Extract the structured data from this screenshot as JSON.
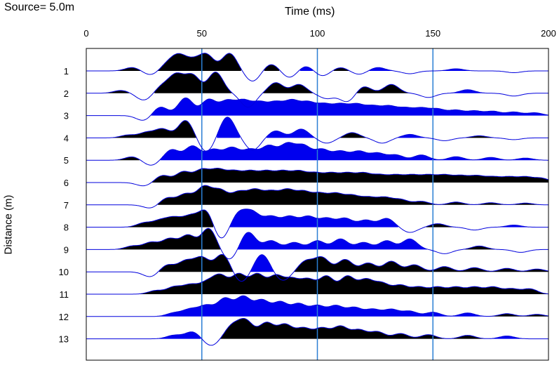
{
  "header": {
    "source_label": "Source=  5.0m"
  },
  "chart_data": {
    "type": "line",
    "title": "",
    "xlabel": "Time (ms)",
    "ylabel": "Distance (m)",
    "xlim": [
      0,
      200
    ],
    "x_ticks": [
      0,
      50,
      100,
      150,
      200
    ],
    "trace_labels": [
      "1",
      "2",
      "3",
      "4",
      "5",
      "6",
      "7",
      "8",
      "9",
      "10",
      "11",
      "12",
      "13"
    ],
    "gridlines_x": [
      50,
      100,
      150
    ],
    "grid": true,
    "colors": {
      "positive_fill": "#000000",
      "negative_fill": "#0000ee",
      "gridline": "#2b7fd4",
      "trace_line": "#0000dd"
    },
    "wavelets": [
      [
        [
          20,
          -1
        ],
        [
          28,
          1.2
        ],
        [
          35,
          -1.8
        ],
        [
          40,
          -4
        ],
        [
          46,
          -2.5
        ],
        [
          52,
          -4.5
        ],
        [
          62,
          -5
        ],
        [
          72,
          3
        ],
        [
          80,
          -2
        ],
        [
          88,
          2
        ],
        [
          95,
          -1.5
        ],
        [
          102,
          1.5
        ],
        [
          110,
          -1
        ],
        [
          118,
          1
        ],
        [
          126,
          -1
        ],
        [
          140,
          0.8
        ],
        [
          160,
          -0.6
        ],
        [
          185,
          0.5
        ]
      ],
      [
        [
          15,
          -0.8
        ],
        [
          25,
          2
        ],
        [
          33,
          -2
        ],
        [
          39,
          -5
        ],
        [
          46,
          -5
        ],
        [
          56,
          -6
        ],
        [
          70,
          4
        ],
        [
          82,
          -3
        ],
        [
          92,
          -2.5
        ],
        [
          104,
          1.5
        ],
        [
          113,
          2.5
        ],
        [
          120,
          -2
        ],
        [
          132,
          -2.5
        ],
        [
          148,
          1.2
        ],
        [
          165,
          -1
        ],
        [
          185,
          0.8
        ]
      ],
      [
        [
          25,
          1.5
        ],
        [
          32,
          -2.5
        ],
        [
          43,
          -5
        ],
        [
          53,
          -4.5
        ],
        [
          61,
          -4
        ],
        [
          68,
          -4
        ],
        [
          75,
          -3.5
        ],
        [
          82,
          -3.5
        ],
        [
          89,
          -4
        ],
        [
          96,
          -3.5
        ],
        [
          103,
          -3
        ],
        [
          110,
          -3
        ],
        [
          117,
          -3
        ],
        [
          124,
          -2.5
        ],
        [
          131,
          -2.5
        ],
        [
          138,
          -2
        ],
        [
          145,
          -2
        ],
        [
          152,
          -1.8
        ],
        [
          160,
          -1.5
        ],
        [
          168,
          -1.3
        ],
        [
          176,
          -1.2
        ],
        [
          185,
          -1
        ],
        [
          194,
          -0.8
        ]
      ],
      [
        [
          18,
          -0.8
        ],
        [
          26,
          -1.5
        ],
        [
          33,
          -2.5
        ],
        [
          43,
          -5
        ],
        [
          52,
          4
        ],
        [
          61,
          -6
        ],
        [
          72,
          3.5
        ],
        [
          82,
          -2
        ],
        [
          93,
          -2.5
        ],
        [
          104,
          1.5
        ],
        [
          115,
          -1.5
        ],
        [
          128,
          1.5
        ],
        [
          140,
          -1
        ],
        [
          155,
          0.8
        ],
        [
          170,
          -0.6
        ],
        [
          185,
          0.5
        ]
      ],
      [
        [
          20,
          -1
        ],
        [
          28,
          1.5
        ],
        [
          37,
          -3
        ],
        [
          46,
          -4
        ],
        [
          55,
          -3
        ],
        [
          63,
          -3.5
        ],
        [
          71,
          -3
        ],
        [
          79,
          -4
        ],
        [
          87,
          -4.5
        ],
        [
          94,
          -4
        ],
        [
          102,
          -3
        ],
        [
          110,
          -2.5
        ],
        [
          118,
          -2.5
        ],
        [
          126,
          -2
        ],
        [
          134,
          -1.5
        ],
        [
          145,
          -1.5
        ],
        [
          160,
          -1
        ],
        [
          175,
          -0.8
        ],
        [
          190,
          -0.6
        ]
      ],
      [
        [
          25,
          1
        ],
        [
          33,
          -2
        ],
        [
          42,
          -3
        ],
        [
          50,
          -3.5
        ],
        [
          57,
          -3.5
        ],
        [
          64,
          -3
        ],
        [
          71,
          -3
        ],
        [
          78,
          -3
        ],
        [
          85,
          -3
        ],
        [
          92,
          -3
        ],
        [
          99,
          -2.5
        ],
        [
          106,
          -2.5
        ],
        [
          113,
          -2.5
        ],
        [
          120,
          -2.5
        ],
        [
          127,
          -2
        ],
        [
          134,
          -2
        ],
        [
          141,
          -2
        ],
        [
          148,
          -2
        ],
        [
          155,
          -2
        ],
        [
          162,
          -1.8
        ],
        [
          169,
          -1.8
        ],
        [
          176,
          -1.5
        ],
        [
          183,
          -1.5
        ],
        [
          190,
          -1.5
        ],
        [
          197,
          -1.2
        ]
      ],
      [
        [
          28,
          1
        ],
        [
          35,
          -2
        ],
        [
          43,
          -3
        ],
        [
          51,
          -5
        ],
        [
          58,
          -4
        ],
        [
          66,
          -3.5
        ],
        [
          73,
          -4
        ],
        [
          80,
          -3.5
        ],
        [
          87,
          -4
        ],
        [
          94,
          -3.5
        ],
        [
          101,
          -3
        ],
        [
          108,
          -3
        ],
        [
          115,
          -2.5
        ],
        [
          122,
          -2
        ],
        [
          129,
          -2
        ],
        [
          136,
          -1.5
        ],
        [
          145,
          -1
        ],
        [
          160,
          -0.8
        ],
        [
          175,
          -0.6
        ],
        [
          190,
          -0.5
        ]
      ],
      [
        [
          25,
          -1.2
        ],
        [
          32,
          -1.8
        ],
        [
          38,
          -2.5
        ],
        [
          45,
          -3
        ],
        [
          52,
          -5
        ],
        [
          58,
          4
        ],
        [
          66,
          -4
        ],
        [
          72,
          -4
        ],
        [
          80,
          -3
        ],
        [
          88,
          -3
        ],
        [
          96,
          -3
        ],
        [
          104,
          -2.5
        ],
        [
          112,
          -2.5
        ],
        [
          121,
          -2
        ],
        [
          130,
          -2.5
        ],
        [
          140,
          1.5
        ],
        [
          152,
          -1
        ],
        [
          168,
          0.8
        ],
        [
          185,
          -0.6
        ]
      ],
      [
        [
          20,
          -1
        ],
        [
          28,
          -2
        ],
        [
          36,
          -3
        ],
        [
          44,
          -4
        ],
        [
          53,
          -6
        ],
        [
          62,
          3
        ],
        [
          70,
          -5
        ],
        [
          80,
          -2.5
        ],
        [
          90,
          -2
        ],
        [
          100,
          -2.5
        ],
        [
          110,
          -3
        ],
        [
          120,
          -2
        ],
        [
          130,
          -2.5
        ],
        [
          140,
          -3
        ],
        [
          155,
          1.2
        ],
        [
          170,
          -1
        ],
        [
          188,
          0.8
        ]
      ],
      [
        [
          28,
          1.5
        ],
        [
          35,
          -2
        ],
        [
          43,
          -3
        ],
        [
          50,
          -4
        ],
        [
          59,
          -5
        ],
        [
          67,
          3
        ],
        [
          76,
          -5
        ],
        [
          85,
          2.5
        ],
        [
          95,
          -3
        ],
        [
          102,
          -4
        ],
        [
          112,
          -3.5
        ],
        [
          122,
          -2.5
        ],
        [
          132,
          -3
        ],
        [
          142,
          -2
        ],
        [
          155,
          -1.5
        ],
        [
          168,
          -1.2
        ],
        [
          182,
          -1
        ],
        [
          195,
          -0.8
        ]
      ],
      [
        [
          30,
          -1
        ],
        [
          38,
          -2
        ],
        [
          45,
          -2.5
        ],
        [
          52,
          -3
        ],
        [
          58,
          -5
        ],
        [
          66,
          -5.5
        ],
        [
          74,
          -5.5
        ],
        [
          82,
          -5
        ],
        [
          89,
          -4
        ],
        [
          96,
          -4
        ],
        [
          104,
          -5
        ],
        [
          113,
          -5
        ],
        [
          121,
          -4
        ],
        [
          128,
          -3
        ],
        [
          136,
          -2.5
        ],
        [
          144,
          -2
        ],
        [
          152,
          -2
        ],
        [
          160,
          -2
        ],
        [
          168,
          -2
        ],
        [
          176,
          -2
        ],
        [
          184,
          -1.5
        ],
        [
          192,
          -1.5
        ]
      ],
      [
        [
          38,
          -1
        ],
        [
          45,
          -2
        ],
        [
          52,
          -3
        ],
        [
          60,
          -5
        ],
        [
          68,
          -5.5
        ],
        [
          76,
          -4.5
        ],
        [
          84,
          -4
        ],
        [
          92,
          -3.5
        ],
        [
          100,
          -3
        ],
        [
          108,
          -3
        ],
        [
          116,
          -2.5
        ],
        [
          124,
          -2
        ],
        [
          132,
          -2
        ],
        [
          140,
          -1.5
        ],
        [
          150,
          -1.2
        ],
        [
          165,
          -1
        ],
        [
          182,
          -0.8
        ],
        [
          195,
          -0.6
        ]
      ],
      [
        [
          38,
          -1
        ],
        [
          46,
          -2
        ],
        [
          54,
          2
        ],
        [
          63,
          -3.5
        ],
        [
          69,
          -5
        ],
        [
          78,
          -4.5
        ],
        [
          86,
          -4
        ],
        [
          94,
          -3
        ],
        [
          102,
          -3
        ],
        [
          110,
          -3.5
        ],
        [
          118,
          -2.5
        ],
        [
          126,
          -2
        ],
        [
          136,
          -1.5
        ],
        [
          148,
          -1.2
        ],
        [
          165,
          -1
        ],
        [
          182,
          -0.8
        ]
      ]
    ]
  }
}
